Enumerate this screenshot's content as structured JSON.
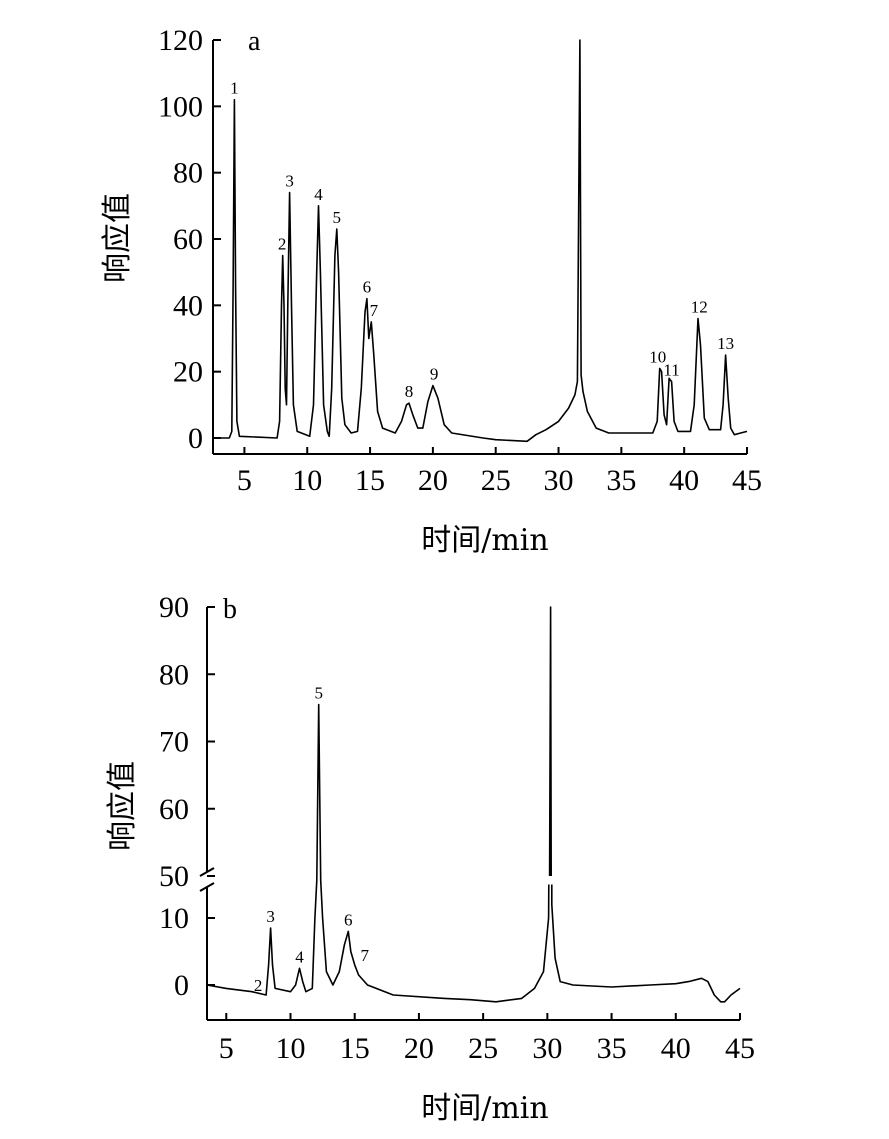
{
  "chart_data": [
    {
      "type": "line",
      "panel": "a",
      "xlabel": "时间/min",
      "ylabel": "响应值",
      "xlim": [
        2.5,
        45
      ],
      "ylim": [
        -5,
        120
      ],
      "x_ticks": [
        5,
        10,
        15,
        20,
        25,
        30,
        35,
        40,
        45
      ],
      "y_ticks": [
        0,
        20,
        40,
        60,
        80,
        100,
        120
      ],
      "series": [
        {
          "points": [
            [
              2.5,
              0
            ],
            [
              3.8,
              0
            ],
            [
              4.0,
              2
            ],
            [
              4.1,
              45
            ],
            [
              4.2,
              102
            ],
            [
              4.3,
              45
            ],
            [
              4.4,
              5
            ],
            [
              4.6,
              0.5
            ],
            [
              7.6,
              0
            ],
            [
              7.8,
              5
            ],
            [
              7.95,
              40
            ],
            [
              8.05,
              55
            ],
            [
              8.15,
              40
            ],
            [
              8.25,
              15
            ],
            [
              8.35,
              10
            ],
            [
              8.45,
              40
            ],
            [
              8.6,
              74
            ],
            [
              8.75,
              40
            ],
            [
              8.9,
              10
            ],
            [
              9.2,
              2
            ],
            [
              10.2,
              0.5
            ],
            [
              10.5,
              10
            ],
            [
              10.75,
              50
            ],
            [
              10.9,
              70
            ],
            [
              11.05,
              50
            ],
            [
              11.3,
              10
            ],
            [
              11.6,
              2
            ],
            [
              11.75,
              0.5
            ],
            [
              11.95,
              15
            ],
            [
              12.2,
              55
            ],
            [
              12.35,
              63
            ],
            [
              12.5,
              50
            ],
            [
              12.75,
              12
            ],
            [
              13.0,
              4
            ],
            [
              13.5,
              1.5
            ],
            [
              14.0,
              2
            ],
            [
              14.3,
              15
            ],
            [
              14.6,
              38
            ],
            [
              14.75,
              42
            ],
            [
              14.9,
              30
            ],
            [
              15.1,
              35
            ],
            [
              15.3,
              25
            ],
            [
              15.6,
              8
            ],
            [
              16.0,
              3
            ],
            [
              17.0,
              1.5
            ],
            [
              17.5,
              5
            ],
            [
              17.9,
              10
            ],
            [
              18.1,
              10.5
            ],
            [
              18.4,
              7
            ],
            [
              18.8,
              3
            ],
            [
              19.2,
              3
            ],
            [
              19.6,
              11
            ],
            [
              20.0,
              15.8
            ],
            [
              20.4,
              12
            ],
            [
              20.9,
              4
            ],
            [
              21.5,
              1.5
            ],
            [
              24.0,
              0
            ],
            [
              25.0,
              -0.5
            ],
            [
              27.5,
              -1
            ],
            [
              28.2,
              1
            ],
            [
              29.0,
              2.5
            ],
            [
              30.0,
              5
            ],
            [
              30.8,
              9
            ],
            [
              31.3,
              13
            ],
            [
              31.5,
              17
            ],
            [
              31.7,
              120
            ],
            [
              31.8,
              19
            ],
            [
              31.95,
              14
            ],
            [
              32.3,
              8
            ],
            [
              33.0,
              3
            ],
            [
              34.0,
              1.5
            ],
            [
              37.5,
              1.5
            ],
            [
              37.85,
              5
            ],
            [
              38.05,
              21
            ],
            [
              38.2,
              20
            ],
            [
              38.4,
              7
            ],
            [
              38.6,
              4
            ],
            [
              38.8,
              18
            ],
            [
              39.0,
              17
            ],
            [
              39.2,
              5
            ],
            [
              39.5,
              2
            ],
            [
              40.5,
              2
            ],
            [
              40.8,
              10
            ],
            [
              41.1,
              36
            ],
            [
              41.3,
              28
            ],
            [
              41.6,
              6
            ],
            [
              42.0,
              2.5
            ],
            [
              42.9,
              2.5
            ],
            [
              43.1,
              10
            ],
            [
              43.3,
              25
            ],
            [
              43.5,
              12
            ],
            [
              43.7,
              3
            ],
            [
              44.0,
              1
            ],
            [
              44.5,
              1.5
            ],
            [
              45.0,
              2
            ]
          ]
        }
      ],
      "peak_labels": [
        {
          "text": "1",
          "x": 4.2,
          "y": 102
        },
        {
          "text": "2",
          "x": 8.0,
          "y": 55
        },
        {
          "text": "3",
          "x": 8.6,
          "y": 74
        },
        {
          "text": "4",
          "x": 10.9,
          "y": 70
        },
        {
          "text": "5",
          "x": 12.35,
          "y": 63
        },
        {
          "text": "6",
          "x": 14.75,
          "y": 42
        },
        {
          "text": "7",
          "x": 15.3,
          "y": 35
        },
        {
          "text": "8",
          "x": 18.1,
          "y": 10.5
        },
        {
          "text": "9",
          "x": 20.1,
          "y": 15.8
        },
        {
          "text": "10",
          "x": 37.9,
          "y": 21
        },
        {
          "text": "11",
          "x": 39.0,
          "y": 17
        },
        {
          "text": "12",
          "x": 41.2,
          "y": 36
        },
        {
          "text": "13",
          "x": 43.3,
          "y": 25
        }
      ]
    },
    {
      "type": "line",
      "panel": "b",
      "xlabel": "时间/min",
      "ylabel": "响应值",
      "xlim": [
        3.5,
        45
      ],
      "y_axis_break": {
        "lower_range": [
          -5,
          15
        ],
        "upper_range": [
          50,
          90
        ]
      },
      "x_ticks": [
        5,
        10,
        15,
        20,
        25,
        30,
        35,
        40,
        45
      ],
      "y_ticks_lower": [
        0,
        10
      ],
      "y_ticks_upper": [
        50,
        60,
        70,
        80,
        90
      ],
      "series": [
        {
          "points": [
            [
              3.5,
              0
            ],
            [
              5.0,
              -0.5
            ],
            [
              7.0,
              -1
            ],
            [
              8.1,
              -1.5
            ],
            [
              8.3,
              3
            ],
            [
              8.45,
              8.5
            ],
            [
              8.6,
              3
            ],
            [
              8.8,
              -0.5
            ],
            [
              10.0,
              -1
            ],
            [
              10.4,
              0
            ],
            [
              10.7,
              2.5
            ],
            [
              10.95,
              0.5
            ],
            [
              11.2,
              -1
            ],
            [
              11.7,
              -0.5
            ],
            [
              11.9,
              10
            ],
            [
              12.05,
              40
            ],
            [
              12.2,
              75.5
            ],
            [
              12.35,
              40
            ],
            [
              12.5,
              10
            ],
            [
              12.8,
              2
            ],
            [
              13.3,
              0
            ],
            [
              13.8,
              2
            ],
            [
              14.2,
              6
            ],
            [
              14.5,
              8
            ],
            [
              14.7,
              5
            ],
            [
              15.0,
              3
            ],
            [
              15.3,
              1.5
            ],
            [
              16.0,
              0
            ],
            [
              18.0,
              -1.5
            ],
            [
              22.0,
              -2
            ],
            [
              24.0,
              -2.2
            ],
            [
              26.0,
              -2.5
            ],
            [
              28.0,
              -2
            ],
            [
              29.0,
              -0.5
            ],
            [
              29.7,
              2
            ],
            [
              30.1,
              10
            ],
            [
              30.25,
              90
            ],
            [
              30.35,
              12
            ],
            [
              30.6,
              4
            ],
            [
              31.0,
              0.5
            ],
            [
              32.0,
              0
            ],
            [
              35.0,
              -0.3
            ],
            [
              38.0,
              0
            ],
            [
              40.0,
              0.2
            ],
            [
              41.0,
              0.5
            ],
            [
              42.0,
              1
            ],
            [
              42.5,
              0.5
            ],
            [
              43.0,
              -1.5
            ],
            [
              43.5,
              -2.5
            ],
            [
              43.8,
              -2.5
            ],
            [
              44.3,
              -1.5
            ],
            [
              45.0,
              -0.5
            ]
          ]
        }
      ],
      "peak_labels": [
        {
          "text": "2",
          "x": 8.1,
          "y": -1.5
        },
        {
          "text": "3",
          "x": 8.45,
          "y": 8.5
        },
        {
          "text": "4",
          "x": 10.7,
          "y": 2.5
        },
        {
          "text": "5",
          "x": 12.2,
          "y": 75.5
        },
        {
          "text": "6",
          "x": 14.5,
          "y": 8
        },
        {
          "text": "7",
          "x": 15.0,
          "y": 3
        }
      ]
    }
  ]
}
